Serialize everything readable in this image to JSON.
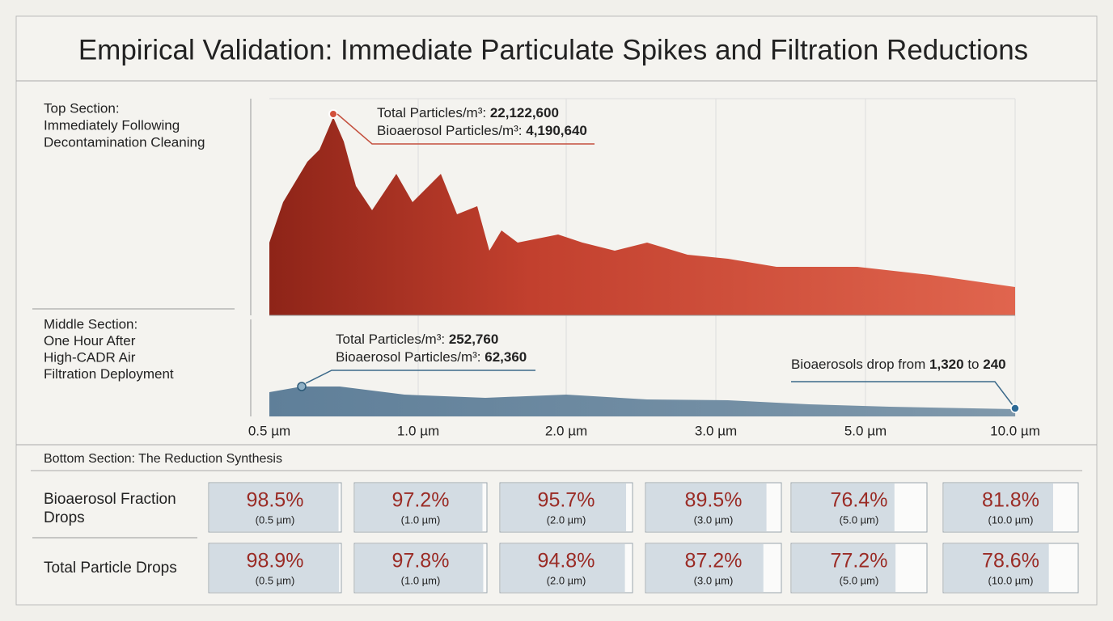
{
  "title": "Empirical Validation: Immediate Particulate Spikes and Filtration Reductions",
  "top_section": {
    "label": [
      "Top Section:",
      "Immediately Following",
      "Decontamination Cleaning"
    ],
    "annotation": [
      {
        "label": "Total Particles/m³:",
        "value": "22,122,600"
      },
      {
        "label": "Bioaerosol Particles/m³:",
        "value": "4,190,640"
      }
    ]
  },
  "middle_section": {
    "label": [
      "Middle Section:",
      "One Hour After",
      "High-CADR Air",
      "Filtration Deployment"
    ],
    "annotation": [
      {
        "label": "Total Particles/m³:",
        "value": "252,760"
      },
      {
        "label": "Bioaerosol Particles/m³:",
        "value": "62,360"
      }
    ],
    "callout": {
      "text": "Bioaerosols drop from",
      "from": "1,320",
      "joiner": "to",
      "to": "240"
    }
  },
  "x_axis": [
    "0.5 µm",
    "1.0 µm",
    "2.0 µm",
    "3.0 µm",
    "5.0 µm",
    "10.0 µm"
  ],
  "bottom_section": {
    "title": "Bottom Section: The Reduction Synthesis",
    "rows": [
      {
        "name": [
          "Bioaerosol Fraction",
          "Drops"
        ],
        "values": [
          98.5,
          97.2,
          95.7,
          89.5,
          76.4,
          81.8
        ],
        "value_labels": [
          "98.5%",
          "97.2%",
          "95.7%",
          "89.5%",
          "76.4%",
          "81.8%"
        ],
        "sizes": [
          "(0.5 µm)",
          "(1.0 µm)",
          "(2.0 µm)",
          "(3.0 µm)",
          "(5.0 µm)",
          "(10.0 µm)"
        ]
      },
      {
        "name": [
          "Total Particle Drops"
        ],
        "values": [
          98.9,
          97.8,
          94.8,
          87.2,
          77.2,
          78.6
        ],
        "value_labels": [
          "98.9%",
          "97.8%",
          "94.8%",
          "87.2%",
          "77.2%",
          "78.6%"
        ],
        "sizes": [
          "(0.5 µm)",
          "(1.0 µm)",
          "(2.0 µm)",
          "(3.0 µm)",
          "(5.0 µm)",
          "(10.0 µm)"
        ]
      }
    ]
  }
}
